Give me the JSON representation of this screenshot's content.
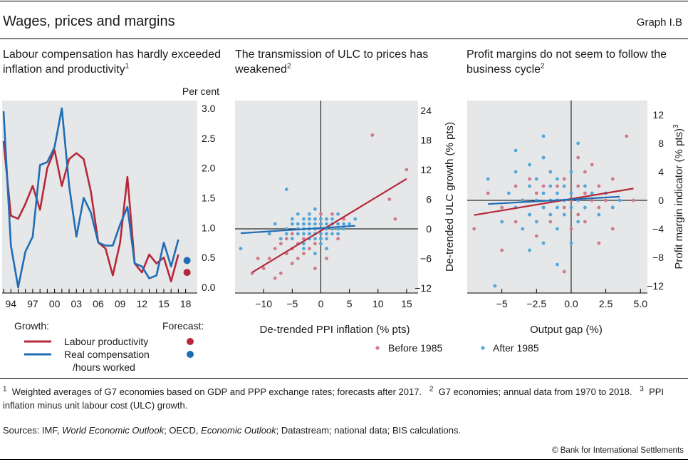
{
  "header": {
    "title": "Wages, prices and margins",
    "graph_no": "Graph I.B"
  },
  "panels": {
    "left": {
      "title": "Labour compensation has hardly exceeded inflation and productivity",
      "title_sup": "1",
      "unit": "Per cent",
      "legend_growth": "Growth:",
      "legend_forecast": "Forecast:",
      "legend_lp": "Labour productivity",
      "legend_rc1": "Real compensation",
      "legend_rc2": "/hours worked"
    },
    "middle": {
      "title": "The transmission of ULC to prices has weakened",
      "title_sup": "2",
      "xlabel": "De-trended PPI inflation (% pts)",
      "ylabel": "De-trended ULC growth (% pts)"
    },
    "right": {
      "title": "Profit margins do not seem to follow the business cycle",
      "title_sup": "2",
      "xlabel": "Output gap (%)",
      "ylabel": "Profit margin indicator (% pts)",
      "ylabel_sup": "3"
    },
    "scatter_legend": {
      "before": "Before 1985",
      "after": "After 1985"
    }
  },
  "footnotes": {
    "n1": "1",
    "t1": "Weighted averages of G7 economies based on GDP and PPP exchange rates; forecasts after 2017.",
    "n2": "2",
    "t2": "G7 economies; annual data from 1970 to 2018.",
    "n3": "3",
    "t3": "PPI inflation minus unit labour cost (ULC) growth."
  },
  "sources": {
    "prefix": "Sources: IMF, ",
    "weo": "World Economic Outlook",
    "mid": "; OECD, ",
    "eo": "Economic Outlook",
    "rest": "; Datastream; national data; BIS calculations."
  },
  "copyright": "© Bank for International Settlements",
  "colors": {
    "red": "#b5283b",
    "blue": "#1f6db5",
    "red_dot": "#cf7a8c",
    "blue_dot": "#52a8dc",
    "panel_bg": "#e6e7e8"
  },
  "chart_data": [
    {
      "type": "line",
      "title": "Labour compensation has hardly exceeded inflation and productivity",
      "ylabel": "Per cent",
      "x": [
        1993,
        1994,
        1995,
        1996,
        1997,
        1998,
        1999,
        2000,
        2001,
        2002,
        2003,
        2004,
        2005,
        2006,
        2007,
        2008,
        2009,
        2010,
        2011,
        2012,
        2013,
        2014,
        2015,
        2016,
        2017
      ],
      "xticks": [
        "94",
        "97",
        "00",
        "03",
        "06",
        "09",
        "12",
        "15",
        "18"
      ],
      "ylim": [
        0,
        3.0
      ],
      "yticks": [
        0.0,
        0.5,
        1.0,
        1.5,
        2.0,
        2.5,
        3.0
      ],
      "grid": false,
      "series": [
        {
          "name": "Labour productivity",
          "values": [
            2.45,
            1.2,
            1.15,
            1.4,
            1.7,
            1.3,
            2.0,
            2.3,
            1.7,
            2.15,
            2.25,
            2.15,
            1.6,
            0.75,
            0.65,
            0.2,
            0.75,
            1.85,
            0.4,
            0.25,
            0.55,
            0.4,
            0.5,
            0.1,
            0.55
          ]
        },
        {
          "name": "Real compensation/hours worked",
          "values": [
            2.95,
            0.7,
            0.0,
            0.6,
            0.85,
            2.05,
            2.1,
            2.35,
            3.0,
            1.7,
            0.85,
            1.5,
            1.25,
            0.75,
            0.7,
            0.7,
            1.05,
            1.35,
            0.4,
            0.35,
            0.15,
            0.2,
            0.75,
            0.35,
            0.8
          ]
        }
      ],
      "forecast": {
        "x": [
          2018
        ],
        "series": [
          {
            "name": "Labour productivity",
            "values": [
              0.25
            ]
          },
          {
            "name": "Real compensation/hours worked",
            "values": [
              0.45
            ]
          }
        ]
      }
    },
    {
      "type": "scatter",
      "title": "The transmission of ULC to prices has weakened",
      "xlabel": "De-trended PPI inflation (% pts)",
      "ylabel": "De-trended ULC growth (% pts)",
      "xlim": [
        -15,
        17
      ],
      "ylim": [
        -13,
        26
      ],
      "xticks": [
        -10,
        -5,
        0,
        5,
        10,
        15
      ],
      "yticks": [
        -12,
        -6,
        0,
        6,
        12,
        18,
        24
      ],
      "grid": false,
      "series": [
        {
          "name": "Before 1985",
          "points": [
            [
              -11,
              -6
            ],
            [
              -10,
              -8
            ],
            [
              -9,
              -6
            ],
            [
              -8,
              -4
            ],
            [
              -8,
              -10
            ],
            [
              -7,
              -9
            ],
            [
              -7,
              -3
            ],
            [
              -6,
              -5
            ],
            [
              -6,
              -2
            ],
            [
              -5,
              -7
            ],
            [
              -5,
              -4
            ],
            [
              -5,
              -1
            ],
            [
              -4,
              -6
            ],
            [
              -4,
              -3
            ],
            [
              -4,
              0
            ],
            [
              -3,
              -5
            ],
            [
              -3,
              -2
            ],
            [
              -3,
              1
            ],
            [
              -2,
              -4
            ],
            [
              -2,
              -1
            ],
            [
              -2,
              2
            ],
            [
              -1,
              -3
            ],
            [
              -1,
              0
            ],
            [
              -1,
              2
            ],
            [
              0,
              -2
            ],
            [
              0,
              1
            ],
            [
              0,
              3
            ],
            [
              1,
              -1
            ],
            [
              1,
              2
            ],
            [
              2,
              0
            ],
            [
              2,
              3
            ],
            [
              3,
              1
            ],
            [
              3,
              -2
            ],
            [
              4,
              2
            ],
            [
              -1,
              -8
            ],
            [
              1,
              -6
            ],
            [
              12,
              6
            ],
            [
              13,
              2
            ],
            [
              15,
              12
            ],
            [
              9,
              19
            ],
            [
              -12,
              -9
            ]
          ]
        },
        {
          "name": "After 1985",
          "points": [
            [
              -14,
              -4
            ],
            [
              -9,
              -1
            ],
            [
              -8,
              1
            ],
            [
              -7,
              -2
            ],
            [
              -6,
              -1
            ],
            [
              -6,
              0
            ],
            [
              -5,
              1
            ],
            [
              -5,
              -2
            ],
            [
              -5,
              2
            ],
            [
              -4,
              0
            ],
            [
              -4,
              1
            ],
            [
              -4,
              -1
            ],
            [
              -4,
              3
            ],
            [
              -3,
              0
            ],
            [
              -3,
              1
            ],
            [
              -3,
              2
            ],
            [
              -3,
              -1
            ],
            [
              -3,
              -3
            ],
            [
              -2,
              0
            ],
            [
              -2,
              1
            ],
            [
              -2,
              2
            ],
            [
              -2,
              -1
            ],
            [
              -2,
              -2
            ],
            [
              -2,
              3
            ],
            [
              -1,
              0
            ],
            [
              -1,
              1
            ],
            [
              -1,
              2
            ],
            [
              -1,
              -1
            ],
            [
              -1,
              -2
            ],
            [
              -1,
              4
            ],
            [
              0,
              0
            ],
            [
              0,
              1
            ],
            [
              0,
              2
            ],
            [
              0,
              -1
            ],
            [
              0,
              -2
            ],
            [
              0,
              -3
            ],
            [
              1,
              0
            ],
            [
              1,
              1
            ],
            [
              1,
              -1
            ],
            [
              1,
              2
            ],
            [
              1,
              -2
            ],
            [
              2,
              0
            ],
            [
              2,
              1
            ],
            [
              2,
              -1
            ],
            [
              2,
              2
            ],
            [
              3,
              0
            ],
            [
              3,
              1
            ],
            [
              3,
              -1
            ],
            [
              4,
              0
            ],
            [
              4,
              1
            ],
            [
              5,
              1
            ],
            [
              -6,
              8
            ],
            [
              -1,
              -5
            ],
            [
              1,
              -4
            ],
            [
              -3,
              -4
            ],
            [
              3,
              3
            ],
            [
              6,
              2
            ]
          ]
        }
      ]
    },
    {
      "type": "scatter",
      "title": "Profit margins do not seem to follow the business cycle",
      "xlabel": "Output gap (%)",
      "ylabel": "Profit margin indicator (% pts)",
      "xlim": [
        -7.5,
        5.5
      ],
      "ylim": [
        -13,
        14
      ],
      "xticks": [
        -5.0,
        -2.5,
        0.0,
        2.5,
        5.0
      ],
      "yticks": [
        -12,
        -8,
        -4,
        0,
        4,
        8,
        12
      ],
      "grid": false,
      "series": [
        {
          "name": "Before 1985",
          "points": [
            [
              -7,
              -4
            ],
            [
              -6,
              1
            ],
            [
              -5,
              -1
            ],
            [
              -4,
              2
            ],
            [
              -4,
              -3
            ],
            [
              -3.5,
              0
            ],
            [
              -3,
              3
            ],
            [
              -3,
              -2
            ],
            [
              -2.5,
              1
            ],
            [
              -2.5,
              -5
            ],
            [
              -2,
              2
            ],
            [
              -2,
              -1
            ],
            [
              -1.5,
              4
            ],
            [
              -1.5,
              -3
            ],
            [
              -1,
              0
            ],
            [
              -1,
              2
            ],
            [
              -0.5,
              -1
            ],
            [
              -0.5,
              3
            ],
            [
              0,
              0
            ],
            [
              0,
              -4
            ],
            [
              0.5,
              2
            ],
            [
              0.5,
              -2
            ],
            [
              1,
              1
            ],
            [
              1,
              4
            ],
            [
              1,
              -3
            ],
            [
              1.5,
              0
            ],
            [
              1.5,
              5
            ],
            [
              2,
              -1
            ],
            [
              2,
              2
            ],
            [
              2.5,
              0
            ],
            [
              3,
              3
            ],
            [
              3,
              -4
            ],
            [
              4,
              9
            ],
            [
              -0.5,
              -10
            ],
            [
              -5,
              -7
            ],
            [
              -2,
              6
            ],
            [
              0.5,
              6
            ],
            [
              2,
              -6
            ],
            [
              4.5,
              0
            ]
          ]
        },
        {
          "name": "After 1985",
          "points": [
            [
              -6,
              3
            ],
            [
              -5,
              -3
            ],
            [
              -4.5,
              1
            ],
            [
              -4,
              -1
            ],
            [
              -4,
              4
            ],
            [
              -3.5,
              0
            ],
            [
              -3.5,
              -4
            ],
            [
              -3,
              2
            ],
            [
              -3,
              -2
            ],
            [
              -3,
              5
            ],
            [
              -2.5,
              0
            ],
            [
              -2.5,
              3
            ],
            [
              -2.5,
              -3
            ],
            [
              -2,
              1
            ],
            [
              -2,
              -1
            ],
            [
              -2,
              6
            ],
            [
              -2,
              -6
            ],
            [
              -1.5,
              0
            ],
            [
              -1.5,
              2
            ],
            [
              -1.5,
              -2
            ],
            [
              -1.5,
              4
            ],
            [
              -1,
              0
            ],
            [
              -1,
              1
            ],
            [
              -1,
              -1
            ],
            [
              -1,
              3
            ],
            [
              -1,
              -4
            ],
            [
              -0.5,
              0
            ],
            [
              -0.5,
              2
            ],
            [
              -0.5,
              -2
            ],
            [
              0,
              1
            ],
            [
              0,
              -1
            ],
            [
              0,
              4
            ],
            [
              0,
              -6
            ],
            [
              0.5,
              0
            ],
            [
              0.5,
              -3
            ],
            [
              1,
              2
            ],
            [
              1,
              -1
            ],
            [
              1.5,
              1
            ],
            [
              2,
              -2
            ],
            [
              2.5,
              1
            ],
            [
              3,
              -1
            ],
            [
              3.5,
              0
            ],
            [
              -2,
              9
            ],
            [
              -5.5,
              -12
            ],
            [
              -1,
              -9
            ],
            [
              -3,
              -7
            ],
            [
              0.5,
              8
            ],
            [
              -4,
              7
            ]
          ]
        }
      ]
    }
  ]
}
